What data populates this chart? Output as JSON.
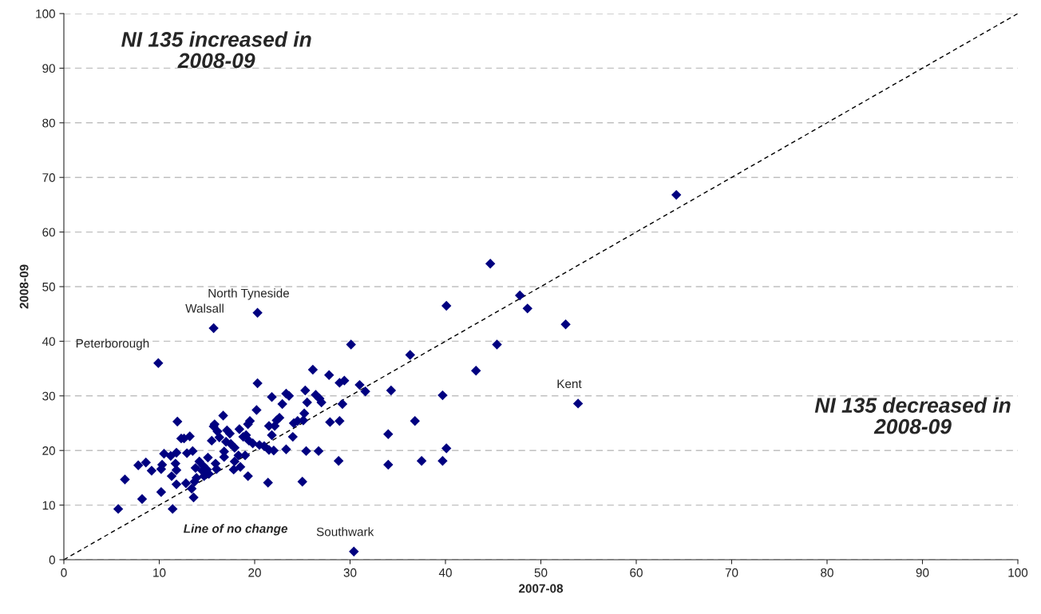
{
  "chart_data": {
    "type": "scatter",
    "xlabel": "2007-08",
    "ylabel": "2008-09",
    "xlim": [
      0,
      100
    ],
    "ylim": [
      0,
      100
    ],
    "xticks": [
      0,
      10,
      20,
      30,
      40,
      50,
      60,
      70,
      80,
      90,
      100
    ],
    "yticks": [
      0,
      10,
      20,
      30,
      40,
      50,
      60,
      70,
      80,
      90,
      100
    ],
    "grid": "y",
    "legend": false,
    "series": [
      {
        "marker": "diamond",
        "color": "#000080",
        "x": [
          64.2,
          44.7,
          47.8,
          48.6,
          40.1,
          52.6,
          45.4,
          43.2,
          36.3,
          30.1,
          53.9,
          39.7,
          34.3,
          36.8,
          34.0,
          40.1,
          39.7,
          37.5,
          34.0,
          30.4,
          15.7,
          20.3,
          9.9,
          31.6,
          31.0,
          29.4,
          28.9,
          29.2,
          27.8,
          26.1,
          26.4,
          26.8,
          27.0,
          25.3,
          25.5,
          25.1,
          25.2,
          24.5,
          24.1,
          24.0,
          23.6,
          23.3,
          22.9,
          22.6,
          22.3,
          22.1,
          21.8,
          21.5,
          21.8,
          21.5,
          20.3,
          20.2,
          20.5,
          21.0,
          21.4,
          23.3,
          25.0,
          25.4,
          26.7,
          28.8,
          28.9,
          27.9,
          19.5,
          19.3,
          19.1,
          19.8,
          19.4,
          19.0,
          19.3,
          18.8,
          18.4,
          18.3,
          17.9,
          17.9,
          17.4,
          17.1,
          17.0,
          16.7,
          16.8,
          16.8,
          16.3,
          15.8,
          15.7,
          15.5,
          16.1,
          15.9,
          15.1,
          15.2,
          15.0,
          14.7,
          14.5,
          14.2,
          13.9,
          13.7,
          13.4,
          13.6,
          13.8,
          13.5,
          13.2,
          12.9,
          12.8,
          12.6,
          12.3,
          11.9,
          11.8,
          11.7,
          11.8,
          11.8,
          11.2,
          11.3,
          11.4,
          10.5,
          10.3,
          10.2,
          10.2,
          9.2,
          8.6,
          7.8,
          8.2,
          6.4,
          5.7,
          17.8,
          18.5,
          14.6,
          17.5,
          22.0,
          16.0
        ],
        "values": [
          66.8,
          54.2,
          48.4,
          46.0,
          46.5,
          43.1,
          39.4,
          34.6,
          37.5,
          39.4,
          28.6,
          30.1,
          31.0,
          25.4,
          23.0,
          20.4,
          18.1,
          18.1,
          17.4,
          1.5,
          42.4,
          45.2,
          36.0,
          30.8,
          32.0,
          32.8,
          32.4,
          28.5,
          33.8,
          34.8,
          30.2,
          29.5,
          28.8,
          31.0,
          28.8,
          25.5,
          26.8,
          25.4,
          25.0,
          22.5,
          30.0,
          30.4,
          28.5,
          26.0,
          25.5,
          24.5,
          29.8,
          24.5,
          22.8,
          20.1,
          32.3,
          27.4,
          21.0,
          20.8,
          14.1,
          20.2,
          14.3,
          19.9,
          19.9,
          18.1,
          25.4,
          25.2,
          25.4,
          24.8,
          22.8,
          21.3,
          21.8,
          19.1,
          15.3,
          22.5,
          23.9,
          19.1,
          18.0,
          20.5,
          23.1,
          23.7,
          21.6,
          26.4,
          19.8,
          18.8,
          22.4,
          24.8,
          24.4,
          21.8,
          23.5,
          17.6,
          18.7,
          15.7,
          16.5,
          15.3,
          16.3,
          18.0,
          15.0,
          14.3,
          13.0,
          11.4,
          16.8,
          19.9,
          22.6,
          19.5,
          14.0,
          22.2,
          22.2,
          25.3,
          19.6,
          17.6,
          16.4,
          13.8,
          19.0,
          15.3,
          9.3,
          19.4,
          17.4,
          16.6,
          12.4,
          16.3,
          17.8,
          17.3,
          11.1,
          14.7,
          9.3,
          16.5,
          17.0,
          17.2,
          21.2,
          20.0,
          16.6
        ]
      },
      {
        "type": "line",
        "color": "#000000",
        "line_style": "dashed",
        "marker": "none",
        "x": [
          0,
          100
        ],
        "values": [
          0,
          100
        ]
      }
    ],
    "annotations": [
      "NI 135 increased in 2008-09",
      "NI 135 decreased in 2008-09",
      "Line of no change",
      {
        "text": "Peterborough",
        "x": 9.9,
        "y": 36.0
      },
      {
        "text": "Walsall",
        "x": 15.7,
        "y": 42.4
      },
      {
        "text": "North Tyneside",
        "x": 20.3,
        "y": 45.2
      },
      {
        "text": "Kent",
        "x": 53.9,
        "y": 28.6
      },
      {
        "text": "Southwark",
        "x": 30.4,
        "y": 1.5
      }
    ]
  }
}
